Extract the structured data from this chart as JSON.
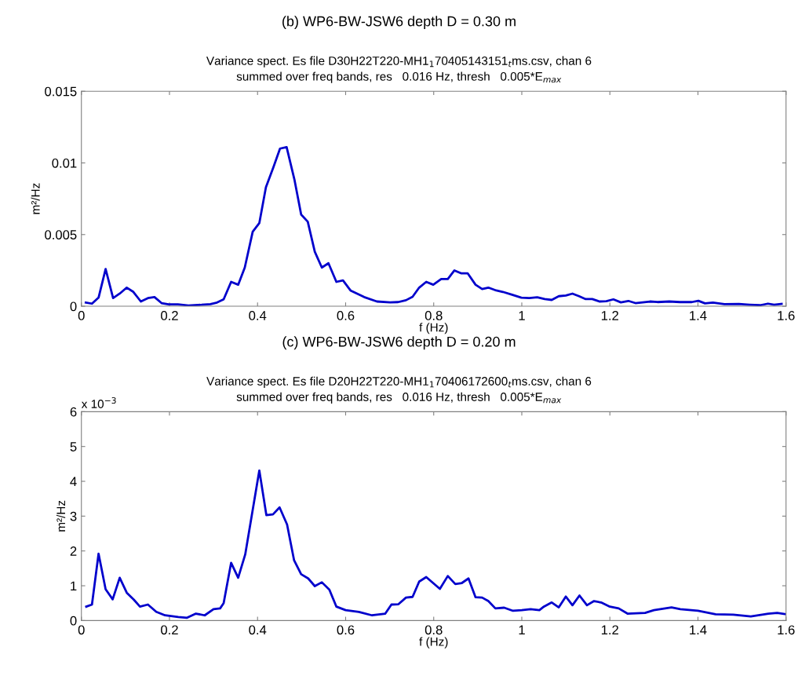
{
  "chart_data": [
    {
      "type": "line",
      "title": "(b) WP6-BW-JSW6 depth D = 0.30 m",
      "subtitle": "Variance spect. Es file D30H22T220-MH1$_{1}$70405143151$_{t}$ms.csv, chan 6\nsummed over freq bands, res   0.016 Hz, thresh   0.005*E$_{max}$",
      "xlabel": "f (Hz)",
      "ylabel": "m²/Hz",
      "series": [
        {
          "color": "#0000cc",
          "x": [
            0.01,
            0.024,
            0.039,
            0.055,
            0.072,
            0.087,
            0.103,
            0.118,
            0.135,
            0.151,
            0.166,
            0.182,
            0.198,
            0.219,
            0.243,
            0.273,
            0.293,
            0.308,
            0.323,
            0.34,
            0.356,
            0.371,
            0.389,
            0.404,
            0.419,
            0.436,
            0.451,
            0.466,
            0.484,
            0.499,
            0.514,
            0.53,
            0.546,
            0.561,
            0.579,
            0.594,
            0.611,
            0.642,
            0.671,
            0.701,
            0.719,
            0.737,
            0.752,
            0.767,
            0.783,
            0.799,
            0.817,
            0.832,
            0.847,
            0.862,
            0.877,
            0.895,
            0.91,
            0.924,
            0.942,
            0.957,
            0.978,
            0.999,
            1.017,
            1.035,
            1.052,
            1.068,
            1.084,
            1.1,
            1.115,
            1.13,
            1.145,
            1.16,
            1.176,
            1.192,
            1.208,
            1.225,
            1.242,
            1.258,
            1.291,
            1.308,
            1.335,
            1.359,
            1.386,
            1.401,
            1.416,
            1.434,
            1.46,
            1.493,
            1.517,
            1.541,
            1.559,
            1.573,
            1.59
          ],
          "values": [
            0.00026,
            0.00018,
            0.0006,
            0.0026,
            0.00057,
            0.00088,
            0.0013,
            0.001,
            0.00033,
            0.00057,
            0.00064,
            0.00022,
            0.00013,
            0.00013,
            5e-05,
            0.0001,
            0.00015,
            0.00026,
            0.00048,
            0.0017,
            0.0015,
            0.0027,
            0.0052,
            0.0058,
            0.0083,
            0.0097,
            0.011,
            0.0111,
            0.0088,
            0.0064,
            0.0059,
            0.0038,
            0.0027,
            0.003,
            0.0017,
            0.0018,
            0.0011,
            0.00064,
            0.00033,
            0.00027,
            0.00029,
            0.00042,
            0.00066,
            0.0013,
            0.0017,
            0.0015,
            0.0019,
            0.0019,
            0.0025,
            0.0023,
            0.0023,
            0.0015,
            0.0012,
            0.0013,
            0.0011,
            0.001,
            0.0008,
            0.0006,
            0.00057,
            0.00062,
            0.0005,
            0.00044,
            0.0007,
            0.00075,
            0.00088,
            0.0007,
            0.0005,
            0.0005,
            0.00033,
            0.00035,
            0.00048,
            0.00027,
            0.00037,
            0.00022,
            0.00033,
            0.00029,
            0.00033,
            0.00029,
            0.00029,
            0.00038,
            0.0002,
            0.00026,
            0.00015,
            0.00016,
            0.00011,
            7e-05,
            0.00018,
            0.00011,
            0.00016
          ]
        }
      ],
      "xlim": [
        0,
        1.6
      ],
      "xticks": [
        0,
        0.2,
        0.4,
        0.6,
        0.8,
        1,
        1.2,
        1.4,
        1.6
      ],
      "ylim": [
        0,
        0.015
      ],
      "yticks": [
        0,
        0.005,
        0.01,
        0.015
      ],
      "grid": false,
      "marker": "none",
      "line_style": "solid"
    },
    {
      "type": "line",
      "title": "(c) WP6-BW-JSW6 depth D = 0.20 m",
      "subtitle": "Variance spect. Es file D20H22T220-MH1$_{1}$70406172600$_{t}$ms.csv, chan 6\nsummed over freq bands, res   0.016 Hz, thresh   0.005*E$_{max}$",
      "xlabel": "f (Hz)",
      "ylabel": "m²/Hz",
      "annotations": [
        "x 10$^{−3}$"
      ],
      "series": [
        {
          "color": "#0000cc",
          "x": [
            0.011,
            0.024,
            0.039,
            0.055,
            0.071,
            0.087,
            0.103,
            0.119,
            0.133,
            0.151,
            0.17,
            0.19,
            0.22,
            0.24,
            0.26,
            0.28,
            0.3,
            0.315,
            0.323,
            0.34,
            0.356,
            0.372,
            0.404,
            0.42,
            0.435,
            0.45,
            0.467,
            0.483,
            0.499,
            0.515,
            0.53,
            0.546,
            0.563,
            0.579,
            0.6,
            0.63,
            0.66,
            0.69,
            0.704,
            0.72,
            0.737,
            0.752,
            0.767,
            0.783,
            0.814,
            0.832,
            0.849,
            0.864,
            0.879,
            0.895,
            0.91,
            0.924,
            0.94,
            0.96,
            0.98,
            1.0,
            1.02,
            1.04,
            1.05,
            1.068,
            1.084,
            1.1,
            1.115,
            1.131,
            1.148,
            1.164,
            1.18,
            1.2,
            1.22,
            1.24,
            1.28,
            1.3,
            1.34,
            1.36,
            1.4,
            1.44,
            1.48,
            1.52,
            1.56,
            1.58,
            1.6
          ],
          "values": [
            0.4,
            0.46,
            1.92,
            0.9,
            0.61,
            1.23,
            0.8,
            0.6,
            0.4,
            0.46,
            0.25,
            0.15,
            0.1,
            0.08,
            0.2,
            0.15,
            0.33,
            0.35,
            0.5,
            1.66,
            1.23,
            1.9,
            4.31,
            3.03,
            3.05,
            3.25,
            2.76,
            1.73,
            1.33,
            1.21,
            0.99,
            1.1,
            0.89,
            0.4,
            0.3,
            0.25,
            0.15,
            0.2,
            0.46,
            0.47,
            0.66,
            0.68,
            1.12,
            1.25,
            0.91,
            1.28,
            1.05,
            1.08,
            1.21,
            0.67,
            0.66,
            0.56,
            0.35,
            0.37,
            0.28,
            0.3,
            0.33,
            0.3,
            0.4,
            0.52,
            0.38,
            0.69,
            0.44,
            0.72,
            0.44,
            0.56,
            0.52,
            0.4,
            0.35,
            0.2,
            0.22,
            0.3,
            0.38,
            0.33,
            0.28,
            0.18,
            0.17,
            0.12,
            0.2,
            0.22,
            0.18
          ]
        }
      ],
      "xlim": [
        0,
        1.6
      ],
      "xticks": [
        0,
        0.2,
        0.4,
        0.6,
        0.8,
        1,
        1.2,
        1.4,
        1.6
      ],
      "ylim": [
        0,
        6
      ],
      "yticks": [
        0,
        1,
        2,
        3,
        4,
        5,
        6
      ],
      "grid": false,
      "marker": "none",
      "line_style": "solid"
    }
  ]
}
